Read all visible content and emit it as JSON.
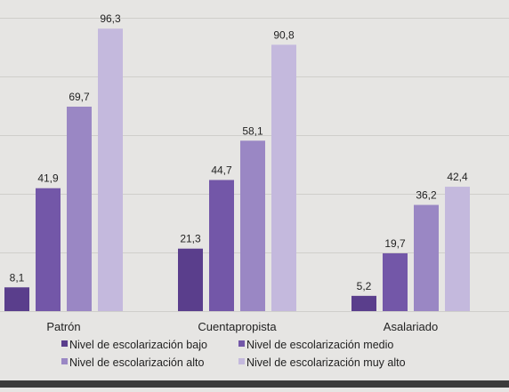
{
  "chart_data": {
    "type": "bar",
    "categories": [
      "Patrón",
      "Cuentapropista",
      "Asalariado"
    ],
    "series": [
      {
        "name": "Nivel de escolarización bajo",
        "color": "#5a3e8c",
        "values": [
          8.1,
          21.3,
          5.2
        ],
        "labels": [
          "8,1",
          "21,3",
          "5,2"
        ]
      },
      {
        "name": "Nivel de escolarización medio",
        "color": "#7357a8",
        "values": [
          41.9,
          44.7,
          19.7
        ],
        "labels": [
          "41,9",
          "44,7",
          "19,7"
        ]
      },
      {
        "name": "Nivel de escolarización alto",
        "color": "#9a87c4",
        "values": [
          69.7,
          58.1,
          36.2
        ],
        "labels": [
          "69,7",
          "58,1",
          "36,2"
        ]
      },
      {
        "name": "Nivel de escolarización muy alto",
        "color": "#c4b9dd",
        "values": [
          96.3,
          90.8,
          42.4
        ],
        "labels": [
          "96,3",
          "90,8",
          "42,4"
        ]
      }
    ],
    "ylim": [
      0,
      100
    ],
    "grid": true,
    "legend": "bottom"
  }
}
